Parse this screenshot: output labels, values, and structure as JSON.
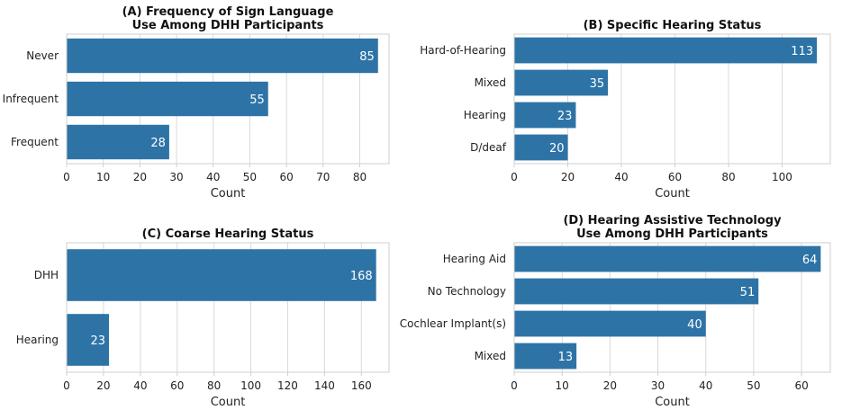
{
  "chart_data": [
    {
      "type": "bar",
      "orientation": "horizontal",
      "title": [
        "(A) Frequency of Sign Language",
        "Use Among DHH Participants"
      ],
      "categories": [
        "Never",
        "Infrequent",
        "Frequent"
      ],
      "values": [
        85,
        55,
        28
      ],
      "xlabel": "Count",
      "ylabel": "",
      "xlim": [
        0,
        88
      ],
      "xticks": [
        0,
        10,
        20,
        30,
        40,
        50,
        60,
        70,
        80
      ],
      "color": "#2e73a6",
      "grid": true
    },
    {
      "type": "bar",
      "orientation": "horizontal",
      "title": [
        "(B) Specific Hearing Status"
      ],
      "categories": [
        "Hard-of-Hearing",
        "Mixed",
        "Hearing",
        "D/deaf"
      ],
      "values": [
        113,
        35,
        23,
        20
      ],
      "xlabel": "Count",
      "ylabel": "",
      "xlim": [
        0,
        118
      ],
      "xticks": [
        0,
        20,
        40,
        60,
        80,
        100
      ],
      "color": "#2e73a6",
      "grid": true
    },
    {
      "type": "bar",
      "orientation": "horizontal",
      "title": [
        "(C) Coarse Hearing Status"
      ],
      "categories": [
        "DHH",
        "Hearing"
      ],
      "values": [
        168,
        23
      ],
      "xlabel": "Count",
      "ylabel": "",
      "xlim": [
        0,
        175
      ],
      "xticks": [
        0,
        20,
        40,
        60,
        80,
        100,
        120,
        140,
        160
      ],
      "color": "#2e73a6",
      "grid": true
    },
    {
      "type": "bar",
      "orientation": "horizontal",
      "title": [
        "(D) Hearing Assistive Technology",
        "Use Among DHH Participants"
      ],
      "categories": [
        "Hearing Aid",
        "No Technology",
        "Cochlear Implant(s)",
        "Mixed"
      ],
      "values": [
        64,
        51,
        40,
        13
      ],
      "xlabel": "Count",
      "ylabel": "",
      "xlim": [
        0,
        66
      ],
      "xticks": [
        0,
        10,
        20,
        30,
        40,
        50,
        60
      ],
      "color": "#2e73a6",
      "grid": true
    }
  ]
}
